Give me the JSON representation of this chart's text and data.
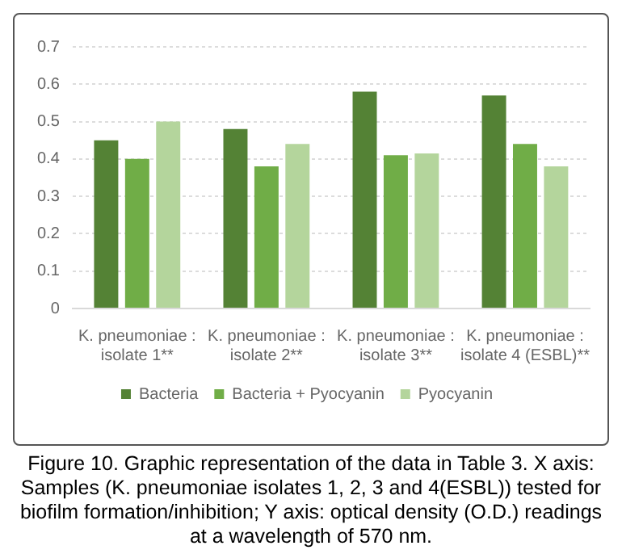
{
  "chart_data": {
    "type": "bar",
    "categories": [
      "K. pneumoniae : isolate 1**",
      "K. pneumoniae : isolate 2**",
      "K. pneumoniae : isolate 3**",
      "K. pneumoniae : isolate 4 (ESBL)**"
    ],
    "series": [
      {
        "name": "Bacteria",
        "color": "#548235",
        "values": [
          0.45,
          0.48,
          0.58,
          0.57
        ]
      },
      {
        "name": "Bacteria + Pyocyanin",
        "color": "#70ad47",
        "values": [
          0.4,
          0.38,
          0.41,
          0.44
        ]
      },
      {
        "name": "Pyocyanin",
        "color": "#b4d59c",
        "values": [
          0.5,
          0.44,
          0.415,
          0.38
        ]
      }
    ],
    "ylim": [
      0,
      0.7
    ],
    "yticks": [
      0,
      0.1,
      0.2,
      0.3,
      0.4,
      0.5,
      0.6,
      0.7
    ],
    "grid": "y",
    "legend": "bottom",
    "annotations": [
      "Figure 10. Graphic representation of the data in Table 3. X axis: Samples (K. pneumoniae isolates 1, 2, 3 and 4(ESBL)) tested for biofilm formation/inhibition; Y axis: optical density (O.D.) readings at a wavelength of 570 nm."
    ]
  }
}
